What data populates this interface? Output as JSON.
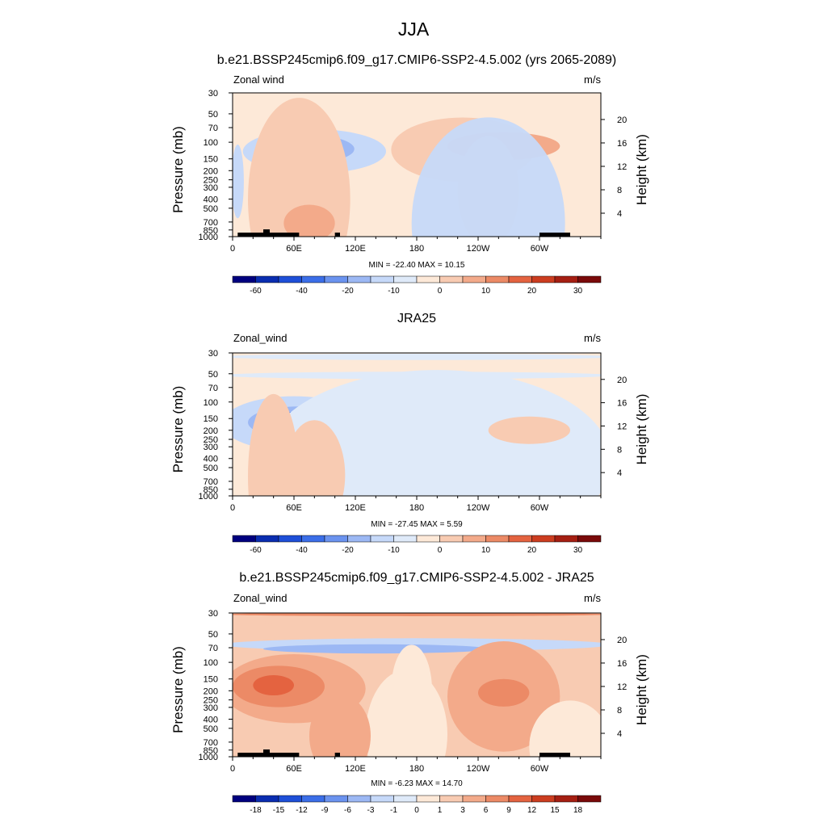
{
  "page_title": "JJA",
  "chart_data": [
    {
      "type": "heatmap",
      "title": "b.e21.BSSP245cmip6.f09_g17.CMIP6-SSP2-4.5.002 (yrs 2065-2089)",
      "left_label": "Zonal wind",
      "units": "m/s",
      "ylabel": "Pressure (mb)",
      "ylabel_right": "Height (km)",
      "x_ticks": [
        "0",
        "60E",
        "120E",
        "180",
        "120W",
        "60W"
      ],
      "y_ticks": [
        "30",
        "50",
        "70",
        "100",
        "150",
        "200",
        "250",
        "300",
        "400",
        "500",
        "700",
        "850",
        "1000"
      ],
      "height_ticks": [
        "20",
        "16",
        "12",
        "8",
        "4"
      ],
      "stats": "MIN = -22.40  MAX =  10.15",
      "colorbar_labels": [
        "-60",
        "-40",
        "-20",
        "-10",
        "0",
        "10",
        "20",
        "30"
      ],
      "min": -22.4,
      "max": 10.15,
      "ylim": [
        1000,
        30
      ],
      "xlim": [
        0,
        360
      ]
    },
    {
      "type": "heatmap",
      "title": "JRA25",
      "left_label": "Zonal_wind",
      "units": "m/s",
      "ylabel": "Pressure (mb)",
      "ylabel_right": "Height (km)",
      "x_ticks": [
        "0",
        "60E",
        "120E",
        "180",
        "120W",
        "60W"
      ],
      "y_ticks": [
        "30",
        "50",
        "70",
        "100",
        "150",
        "200",
        "250",
        "300",
        "400",
        "500",
        "700",
        "850",
        "1000"
      ],
      "height_ticks": [
        "20",
        "16",
        "12",
        "8",
        "4"
      ],
      "stats": "MIN = -27.45  MAX =   5.59",
      "colorbar_labels": [
        "-60",
        "-40",
        "-20",
        "-10",
        "0",
        "10",
        "20",
        "30"
      ],
      "min": -27.45,
      "max": 5.59,
      "ylim": [
        1000,
        30
      ],
      "xlim": [
        0,
        360
      ]
    },
    {
      "type": "heatmap",
      "title": "b.e21.BSSP245cmip6.f09_g17.CMIP6-SSP2-4.5.002 - JRA25",
      "left_label": "Zonal_wind",
      "units": "m/s",
      "ylabel": "Pressure (mb)",
      "ylabel_right": "Height (km)",
      "x_ticks": [
        "0",
        "60E",
        "120E",
        "180",
        "120W",
        "60W"
      ],
      "y_ticks": [
        "30",
        "50",
        "70",
        "100",
        "150",
        "200",
        "250",
        "300",
        "400",
        "500",
        "700",
        "850",
        "1000"
      ],
      "height_ticks": [
        "20",
        "16",
        "12",
        "8",
        "4"
      ],
      "stats": "MIN =  -6.23  MAX =  14.70",
      "colorbar_labels": [
        "-18",
        "-15",
        "-12",
        "-9",
        "-6",
        "-3",
        "-1",
        "0",
        "1",
        "3",
        "6",
        "9",
        "12",
        "15",
        "18"
      ],
      "min": -6.23,
      "max": 14.7,
      "ylim": [
        1000,
        30
      ],
      "xlim": [
        0,
        360
      ]
    }
  ],
  "colors": {
    "palette": [
      "#00007f",
      "#0a2db0",
      "#1e4fd8",
      "#3b6ee8",
      "#6b93ef",
      "#9cb8f4",
      "#c6d9f9",
      "#dfeaf9",
      "#fde9d8",
      "#f8cbb2",
      "#f3aa8a",
      "#ec8a66",
      "#e46340",
      "#cc3d20",
      "#a51f12",
      "#7a0a0a"
    ]
  }
}
